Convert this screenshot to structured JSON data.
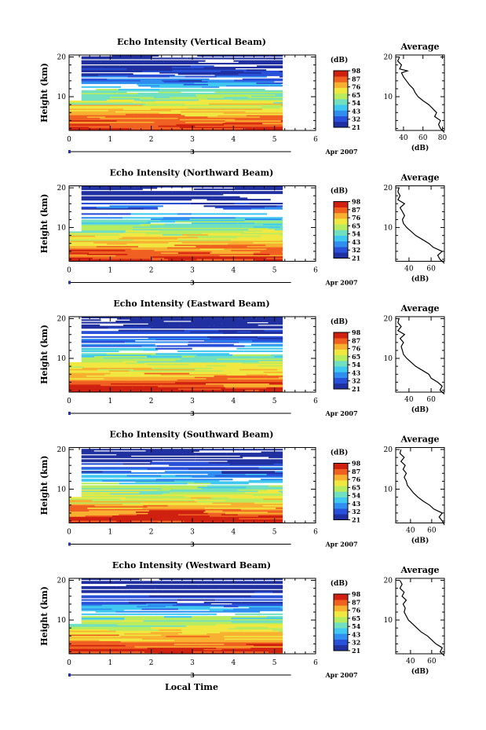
{
  "chart_data": {
    "type": "heatmap",
    "common": {
      "xlabel": "Local Time",
      "date_label": "3",
      "month_year": "Apr 2007",
      "x_ticks": [
        "0",
        "1",
        "2",
        "3",
        "4",
        "5",
        "6"
      ],
      "xlim": [
        0,
        6
      ],
      "y_ticks": [
        "10",
        "20"
      ],
      "ylabel": "Height (km)",
      "colorbar_unit": "(dB)",
      "colorbar_ticks": [
        "21",
        "32",
        "43",
        "54",
        "65",
        "76",
        "87",
        "98"
      ],
      "colorbar_range": [
        21,
        98
      ],
      "profile_title": "Average",
      "profile_xlabel": "(dB)",
      "colors": [
        "#2030a0",
        "#2850d8",
        "#2f8ef0",
        "#40c8f0",
        "#70e0c0",
        "#b8ec60",
        "#f0e840",
        "#f8b030",
        "#f06020",
        "#d02010"
      ]
    },
    "panels": [
      {
        "title": "Echo Intensity (Vertical Beam)",
        "profile_xticks": [
          "40",
          "60",
          "80"
        ],
        "profile_xlim": [
          32,
          82
        ],
        "profile": [
          [
            82,
            1
          ],
          [
            78,
            2
          ],
          [
            76,
            3
          ],
          [
            78,
            4
          ],
          [
            72,
            5
          ],
          [
            74,
            6
          ],
          [
            70,
            7
          ],
          [
            66,
            8
          ],
          [
            60,
            9
          ],
          [
            55,
            10
          ],
          [
            52,
            11
          ],
          [
            50,
            12
          ],
          [
            46,
            13
          ],
          [
            43,
            14
          ],
          [
            40,
            15
          ],
          [
            38,
            16
          ],
          [
            44,
            16.5
          ],
          [
            36,
            17
          ],
          [
            38,
            18
          ],
          [
            34,
            19
          ],
          [
            36,
            20
          ]
        ]
      },
      {
        "title": "Echo Intensity (Northward Beam)",
        "profile_xticks": [
          "40",
          "60"
        ],
        "profile_xlim": [
          28,
          72
        ],
        "profile": [
          [
            72,
            1
          ],
          [
            68,
            2
          ],
          [
            66,
            3
          ],
          [
            70,
            4
          ],
          [
            62,
            5
          ],
          [
            58,
            6
          ],
          [
            52,
            7
          ],
          [
            46,
            8
          ],
          [
            42,
            9
          ],
          [
            38,
            10
          ],
          [
            35,
            11
          ],
          [
            34,
            12
          ],
          [
            36,
            13
          ],
          [
            34,
            14
          ],
          [
            32,
            15
          ],
          [
            36,
            16
          ],
          [
            30,
            17
          ],
          [
            32,
            18
          ],
          [
            30,
            19
          ],
          [
            31,
            20
          ]
        ]
      },
      {
        "title": "Echo Intensity (Eastward Beam)",
        "profile_xticks": [
          "40",
          "60"
        ],
        "profile_xlim": [
          28,
          72
        ],
        "profile": [
          [
            72,
            1
          ],
          [
            68,
            2
          ],
          [
            70,
            3
          ],
          [
            66,
            4
          ],
          [
            60,
            5
          ],
          [
            58,
            6
          ],
          [
            52,
            7
          ],
          [
            46,
            8
          ],
          [
            42,
            9
          ],
          [
            38,
            10
          ],
          [
            35,
            11
          ],
          [
            34,
            12
          ],
          [
            33,
            13
          ],
          [
            35,
            14
          ],
          [
            32,
            15
          ],
          [
            36,
            16
          ],
          [
            30,
            17
          ],
          [
            33,
            18
          ],
          [
            30,
            19
          ],
          [
            31,
            20
          ]
        ]
      },
      {
        "title": "Echo Intensity (Southward Beam)",
        "profile_xticks": [
          "40",
          "60"
        ],
        "profile_xlim": [
          26,
          72
        ],
        "profile": [
          [
            72,
            1
          ],
          [
            70,
            2
          ],
          [
            67,
            3
          ],
          [
            70,
            4
          ],
          [
            62,
            5
          ],
          [
            58,
            6
          ],
          [
            52,
            7
          ],
          [
            47,
            8
          ],
          [
            43,
            9
          ],
          [
            40,
            10
          ],
          [
            37,
            11
          ],
          [
            36,
            12
          ],
          [
            34,
            13
          ],
          [
            36,
            14
          ],
          [
            33,
            15
          ],
          [
            35,
            16
          ],
          [
            31,
            17
          ],
          [
            34,
            18
          ],
          [
            30,
            19
          ],
          [
            31,
            20
          ]
        ]
      },
      {
        "title": "Echo Intensity (Westward Beam)",
        "profile_xticks": [
          "40",
          "60"
        ],
        "profile_xlim": [
          26,
          72
        ],
        "profile": [
          [
            72,
            1
          ],
          [
            68,
            2
          ],
          [
            70,
            3
          ],
          [
            64,
            4
          ],
          [
            60,
            5
          ],
          [
            56,
            6
          ],
          [
            50,
            7
          ],
          [
            46,
            8
          ],
          [
            42,
            9
          ],
          [
            38,
            10
          ],
          [
            36,
            11
          ],
          [
            34,
            12
          ],
          [
            35,
            13
          ],
          [
            33,
            14
          ],
          [
            36,
            15
          ],
          [
            32,
            16
          ],
          [
            34,
            17
          ],
          [
            30,
            18
          ],
          [
            32,
            19
          ],
          [
            30,
            20
          ]
        ]
      }
    ]
  }
}
